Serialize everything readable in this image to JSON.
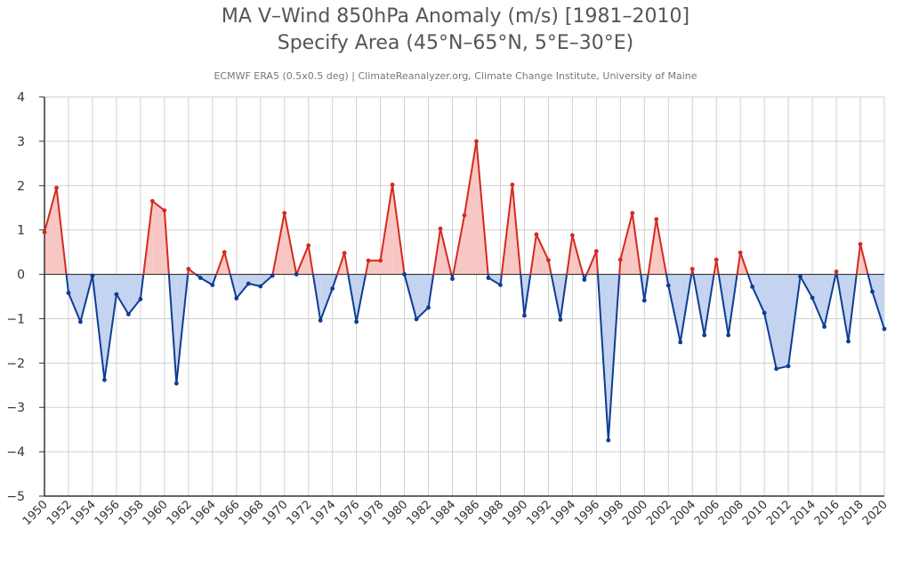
{
  "chart_data": {
    "type": "line",
    "title": "MA V–Wind 850hPa Anomaly (m/s) [1981–2010]",
    "subtitle": "Specify Area (45°N–65°N, 5°E–30°E)",
    "source": "ECMWF ERA5 (0.5x0.5 deg) | ClimateReanalyzer.org, Climate Change Institute, University of Maine",
    "xlabel": "",
    "ylabel": "",
    "xlim": [
      1950,
      2020
    ],
    "ylim": [
      -5,
      4
    ],
    "yticks": [
      4,
      3,
      2,
      1,
      0,
      -1,
      -2,
      -3,
      -4,
      -5
    ],
    "ytick_labels": [
      "4",
      "3",
      "2",
      "1",
      "0",
      "−1",
      "−2",
      "−3",
      "−4",
      "−5"
    ],
    "xticks": [
      1950,
      1952,
      1954,
      1956,
      1958,
      1960,
      1962,
      1964,
      1966,
      1968,
      1970,
      1972,
      1974,
      1976,
      1978,
      1980,
      1982,
      1984,
      1986,
      1988,
      1990,
      1992,
      1994,
      1996,
      1998,
      2000,
      2002,
      2004,
      2006,
      2008,
      2010,
      2012,
      2014,
      2016,
      2018,
      2020
    ],
    "grid": true,
    "legend": "none",
    "colors": {
      "positive_line": "#d42a1f",
      "positive_fill": "#f9c7c3",
      "negative_line": "#0d3d94",
      "negative_fill": "#c4d3ef",
      "grid": "#d0d0d0",
      "axis": "#333333"
    },
    "x": [
      1950,
      1951,
      1952,
      1953,
      1954,
      1955,
      1956,
      1957,
      1958,
      1959,
      1960,
      1961,
      1962,
      1963,
      1964,
      1965,
      1966,
      1967,
      1968,
      1969,
      1970,
      1971,
      1972,
      1973,
      1974,
      1975,
      1976,
      1977,
      1978,
      1979,
      1980,
      1981,
      1982,
      1983,
      1984,
      1985,
      1986,
      1987,
      1988,
      1989,
      1990,
      1991,
      1992,
      1993,
      1994,
      1995,
      1996,
      1997,
      1998,
      1999,
      2000,
      2001,
      2002,
      2003,
      2004,
      2005,
      2006,
      2007,
      2008,
      2009,
      2010,
      2011,
      2012,
      2013,
      2014,
      2015,
      2016,
      2017,
      2018,
      2019,
      2020
    ],
    "series": [
      {
        "values": [
          0.95,
          1.95,
          -0.42,
          -1.07,
          -0.03,
          -2.38,
          -0.45,
          -0.9,
          -0.56,
          1.65,
          1.44,
          -2.46,
          0.12,
          -0.08,
          -0.24,
          0.5,
          -0.54,
          -0.21,
          -0.27,
          -0.03,
          1.38,
          0.0,
          0.65,
          -1.04,
          -0.32,
          0.48,
          -1.07,
          0.31,
          0.31,
          2.02,
          0.0,
          -1.01,
          -0.75,
          1.03,
          -0.1,
          1.33,
          3.0,
          -0.08,
          -0.24,
          2.02,
          -0.93,
          0.9,
          0.32,
          -1.02,
          0.88,
          -0.12,
          0.52,
          -3.74,
          0.33,
          1.38,
          -0.59,
          1.24,
          -0.25,
          -1.53,
          0.12,
          -1.37,
          0.33,
          -1.37,
          0.49,
          -0.28,
          -0.87,
          -2.13,
          -2.07,
          -0.05,
          -0.53,
          -1.18,
          0.06,
          -1.51,
          0.68,
          -0.39,
          -1.23
        ]
      }
    ]
  }
}
